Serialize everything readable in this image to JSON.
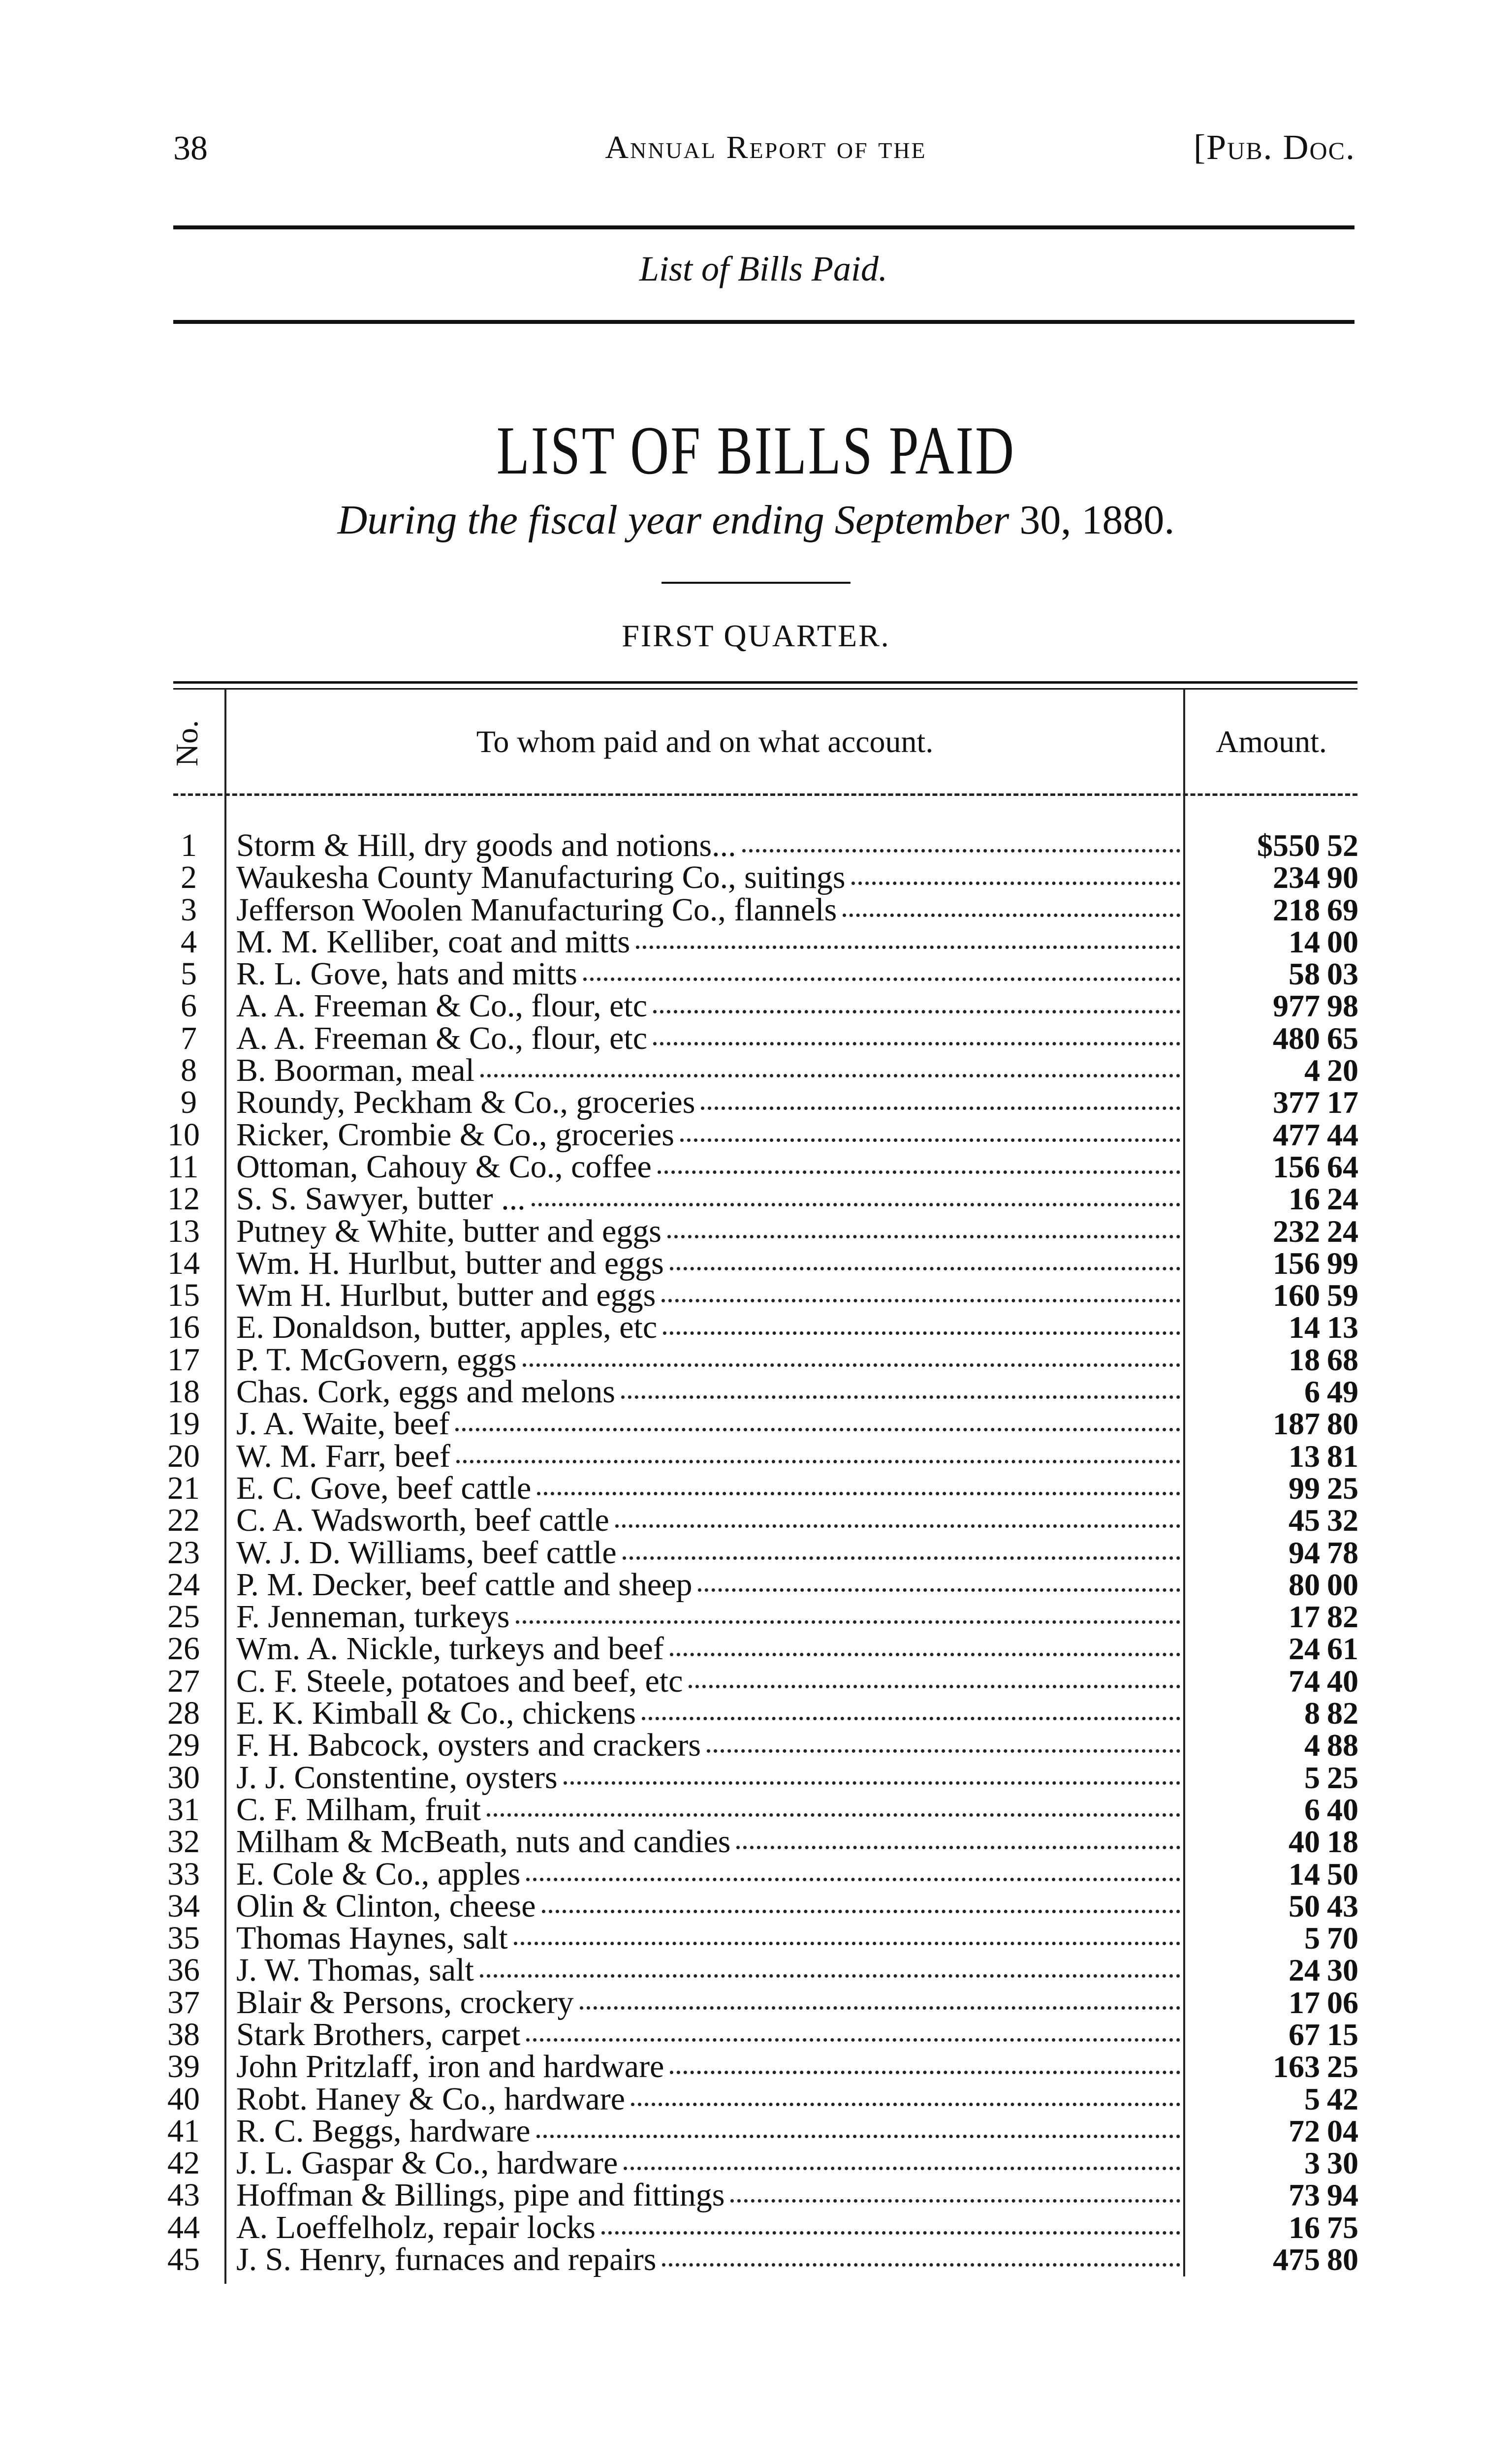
{
  "header": {
    "page_number": "38",
    "running_title": "Annual Report of the",
    "pub_doc": "[Pub. Doc."
  },
  "section_title": "List of Bills Paid.",
  "title": "LIST OF BILLS PAID",
  "subtitle": {
    "italic": "During the fiscal year ending September",
    "plain": " 30, 1880."
  },
  "quarter": "FIRST QUARTER.",
  "table": {
    "columns": [
      "No.",
      "To whom paid and on what account.",
      "Amount."
    ],
    "rows": [
      {
        "no": "1",
        "desc": "Storm & Hill, dry goods and notions...",
        "dollars": "$550",
        "cents": "52"
      },
      {
        "no": "2",
        "desc": "Waukesha County Manufacturing Co., suitings",
        "dollars": "234",
        "cents": "90"
      },
      {
        "no": "3",
        "desc": "Jefferson Woolen Manufacturing Co., flannels",
        "dollars": "218",
        "cents": "69"
      },
      {
        "no": "4",
        "desc": "M. M. Kelliber, coat and mitts",
        "dollars": "14",
        "cents": "00"
      },
      {
        "no": "5",
        "desc": "R. L. Gove, hats and mitts",
        "dollars": "58",
        "cents": "03"
      },
      {
        "no": "6",
        "desc": "A. A. Freeman & Co., flour, etc",
        "dollars": "977",
        "cents": "98"
      },
      {
        "no": "7",
        "desc": "A. A. Freeman & Co., flour, etc",
        "dollars": "480",
        "cents": "65"
      },
      {
        "no": "8",
        "desc": "B. Boorman, meal",
        "dollars": "4",
        "cents": "20"
      },
      {
        "no": "9",
        "desc": "Roundy, Peckham & Co., groceries",
        "dollars": "377",
        "cents": "17"
      },
      {
        "no": "10",
        "desc": "Ricker, Crombie & Co., groceries",
        "dollars": "477",
        "cents": "44"
      },
      {
        "no": "11",
        "desc": "Ottoman, Cahouy & Co., coffee",
        "dollars": "156",
        "cents": "64"
      },
      {
        "no": "12",
        "desc": "S. S. Sawyer, butter ...",
        "dollars": "16",
        "cents": "24"
      },
      {
        "no": "13",
        "desc": "Putney & White, butter and eggs",
        "dollars": "232",
        "cents": "24"
      },
      {
        "no": "14",
        "desc": "Wm. H. Hurlbut, butter and eggs",
        "dollars": "156",
        "cents": "99"
      },
      {
        "no": "15",
        "desc": "Wm H. Hurlbut, butter and eggs",
        "dollars": "160",
        "cents": "59"
      },
      {
        "no": "16",
        "desc": "E. Donaldson, butter, apples, etc",
        "dollars": "14",
        "cents": "13"
      },
      {
        "no": "17",
        "desc": "P. T. McGovern, eggs",
        "dollars": "18",
        "cents": "68"
      },
      {
        "no": "18",
        "desc": "Chas. Cork, eggs and melons",
        "dollars": "6",
        "cents": "49"
      },
      {
        "no": "19",
        "desc": "J. A. Waite, beef",
        "dollars": "187",
        "cents": "80"
      },
      {
        "no": "20",
        "desc": "W. M. Farr, beef",
        "dollars": "13",
        "cents": "81"
      },
      {
        "no": "21",
        "desc": "E. C. Gove, beef cattle",
        "dollars": "99",
        "cents": "25"
      },
      {
        "no": "22",
        "desc": "C. A. Wadsworth, beef cattle",
        "dollars": "45",
        "cents": "32"
      },
      {
        "no": "23",
        "desc": "W. J. D. Williams, beef cattle",
        "dollars": "94",
        "cents": "78"
      },
      {
        "no": "24",
        "desc": "P. M. Decker, beef cattle and sheep",
        "dollars": "80",
        "cents": "00"
      },
      {
        "no": "25",
        "desc": "F. Jenneman, turkeys",
        "dollars": "17",
        "cents": "82"
      },
      {
        "no": "26",
        "desc": "Wm. A. Nickle, turkeys and beef",
        "dollars": "24",
        "cents": "61"
      },
      {
        "no": "27",
        "desc": "C. F. Steele, potatoes and beef, etc",
        "dollars": "74",
        "cents": "40"
      },
      {
        "no": "28",
        "desc": "E. K. Kimball & Co., chickens",
        "dollars": "8",
        "cents": "82"
      },
      {
        "no": "29",
        "desc": "F. H. Babcock, oysters and crackers",
        "dollars": "4",
        "cents": "88"
      },
      {
        "no": "30",
        "desc": "J. J. Constentine, oysters",
        "dollars": "5",
        "cents": "25"
      },
      {
        "no": "31",
        "desc": "C. F. Milham, fruit",
        "dollars": "6",
        "cents": "40"
      },
      {
        "no": "32",
        "desc": "Milham & McBeath, nuts and candies",
        "dollars": "40",
        "cents": "18"
      },
      {
        "no": "33",
        "desc": "E. Cole & Co., apples",
        "dollars": "14",
        "cents": "50"
      },
      {
        "no": "34",
        "desc": "Olin & Clinton, cheese",
        "dollars": "50",
        "cents": "43"
      },
      {
        "no": "35",
        "desc": "Thomas Haynes, salt",
        "dollars": "5",
        "cents": "70"
      },
      {
        "no": "36",
        "desc": "J. W. Thomas, salt",
        "dollars": "24",
        "cents": "30"
      },
      {
        "no": "37",
        "desc": "Blair & Persons, crockery",
        "dollars": "17",
        "cents": "06"
      },
      {
        "no": "38",
        "desc": "Stark Brothers, carpet",
        "dollars": "67",
        "cents": "15"
      },
      {
        "no": "39",
        "desc": "John Pritzlaff, iron and hardware",
        "dollars": "163",
        "cents": "25"
      },
      {
        "no": "40",
        "desc": "Robt. Haney & Co., hardware",
        "dollars": "5",
        "cents": "42"
      },
      {
        "no": "41",
        "desc": "R. C. Beggs, hardware",
        "dollars": "72",
        "cents": "04"
      },
      {
        "no": "42",
        "desc": "J. L. Gaspar & Co., hardware",
        "dollars": "3",
        "cents": "30"
      },
      {
        "no": "43",
        "desc": "Hoffman & Billings, pipe and fittings",
        "dollars": "73",
        "cents": "94"
      },
      {
        "no": "44",
        "desc": "A. Loeffelholz, repair locks",
        "dollars": "16",
        "cents": "75"
      },
      {
        "no": "45",
        "desc": "J. S. Henry, furnaces and repairs",
        "dollars": "475",
        "cents": "80"
      }
    ]
  }
}
